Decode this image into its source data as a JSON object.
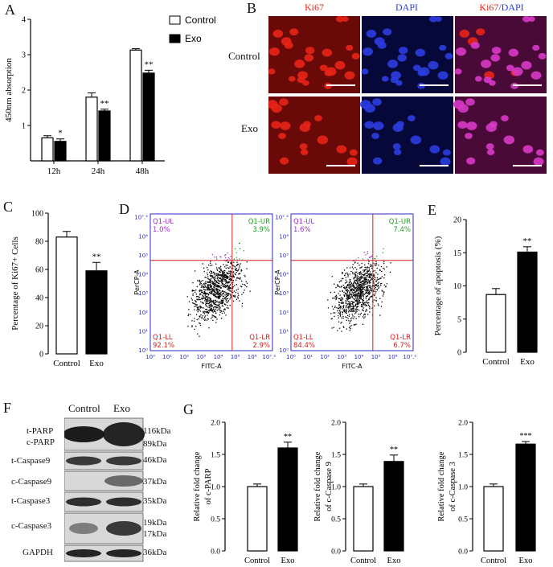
{
  "panels": {
    "A": "A",
    "B": "B",
    "C": "C",
    "D": "D",
    "E": "E",
    "F": "F",
    "G": "G"
  },
  "colors": {
    "control_fill": "#ffffff",
    "exo_fill": "#000000",
    "ki67": "#e82418",
    "dapi": "#2b3de0",
    "merge": "#d838c8",
    "flow_grid": "#2a2acb",
    "flow_gate": "#d02020",
    "flow_ul": "#9b30c8",
    "flow_ur": "#22a022"
  },
  "chart_data": [
    {
      "id": "A",
      "type": "bar",
      "categories": [
        "12h",
        "24h",
        "48h"
      ],
      "series": [
        {
          "name": "Control",
          "values": [
            0.65,
            1.8,
            3.13
          ],
          "errors": [
            0.06,
            0.12,
            0.04
          ]
        },
        {
          "name": "Exo",
          "values": [
            0.55,
            1.41,
            2.48
          ],
          "errors": [
            0.07,
            0.05,
            0.08
          ]
        }
      ],
      "significance": [
        "*",
        "**",
        "**"
      ],
      "ylabel": "450nm absorption",
      "ylim": [
        0,
        4
      ],
      "yticks": [
        "1",
        "2",
        "3",
        "4"
      ],
      "legend": "top-right"
    },
    {
      "id": "C",
      "type": "bar",
      "categories": [
        "Control",
        "Exo"
      ],
      "values": [
        83,
        59
      ],
      "errors": [
        4,
        6
      ],
      "significance": [
        "",
        "**"
      ],
      "ylabel": "Percentage of  Ki67+ Cells",
      "ylim": [
        0,
        100
      ],
      "yticks": [
        "0",
        "20",
        "40",
        "60",
        "80",
        "100"
      ]
    },
    {
      "id": "E",
      "type": "bar",
      "categories": [
        "Control",
        "Exo"
      ],
      "values": [
        8.7,
        15.1
      ],
      "errors": [
        0.9,
        0.8
      ],
      "significance": [
        "",
        "**"
      ],
      "ylabel": "Percentage of apoptosis (%)",
      "ylim": [
        0,
        20
      ],
      "yticks": [
        "0",
        "5",
        "10",
        "15",
        "20"
      ]
    },
    {
      "id": "G1",
      "type": "bar",
      "categories": [
        "Control",
        "Exo"
      ],
      "values": [
        1.0,
        1.6
      ],
      "errors": [
        0.04,
        0.09
      ],
      "significance": [
        "",
        "**"
      ],
      "ylabel": [
        "Relative fold change",
        "of c-PARP"
      ],
      "ylim": [
        0,
        2
      ],
      "yticks": [
        "0.0",
        "0.5",
        "1.0",
        "1.5",
        "2.0"
      ]
    },
    {
      "id": "G2",
      "type": "bar",
      "categories": [
        "Control",
        "Exo"
      ],
      "values": [
        1.0,
        1.39
      ],
      "errors": [
        0.04,
        0.1
      ],
      "significance": [
        "",
        "**"
      ],
      "ylabel": [
        "Relative fold change",
        "of c-Caspase 9"
      ],
      "ylim": [
        0,
        2
      ],
      "yticks": [
        "0.0",
        "0.5",
        "1.0",
        "1.5",
        "2.0"
      ]
    },
    {
      "id": "G3",
      "type": "bar",
      "categories": [
        "Control",
        "Exo"
      ],
      "values": [
        1.0,
        1.66
      ],
      "errors": [
        0.04,
        0.04
      ],
      "significance": [
        "",
        "***"
      ],
      "ylabel": [
        "Relative fold change",
        "of c-Caspase 3"
      ],
      "ylim": [
        0,
        2
      ],
      "yticks": [
        "0.0",
        "0.5",
        "1.0",
        "1.5",
        "2.0"
      ]
    }
  ],
  "microscopy": {
    "columns": [
      "Ki67",
      "DAPI",
      "Ki67/DAPI"
    ],
    "ki67_part": "Ki67",
    "slash": "/",
    "dapi_part": "DAPI",
    "rows": [
      "Control",
      "Exo"
    ]
  },
  "flow": {
    "plots": [
      {
        "ul": "Q1-UL",
        "ul_val": "1.0%",
        "ur": "Q1-UR",
        "ur_val": "3.9%",
        "ll": "Q1-LL",
        "ll_val": "92.1%",
        "lr": "Q1-LR",
        "lr_val": "2.9%"
      },
      {
        "ul": "Q1-UL",
        "ul_val": "1.6%",
        "ur": "Q1-UR",
        "ur_val": "7.4%",
        "ll": "Q1-LL",
        "ll_val": "84.4%",
        "lr": "Q1-LR",
        "lr_val": "6.7%"
      }
    ],
    "xlabel": "FITC-A",
    "ylabel": "PerCP-A",
    "ticks": [
      "10⁰",
      "10¹",
      "10²",
      "10³",
      "10⁴",
      "10⁵",
      "10⁶",
      "10⁷.²"
    ]
  },
  "western": {
    "columns": [
      "Control",
      "Exo"
    ],
    "bands": [
      {
        "left": [
          "t-PARP",
          "c-PARP"
        ],
        "right": [
          "116kDa",
          "89kDa"
        ]
      },
      {
        "left": [
          "t-Caspase9"
        ],
        "right": [
          "46kDa"
        ]
      },
      {
        "left": [
          "c-Caspase9"
        ],
        "right": [
          "37kDa"
        ]
      },
      {
        "left": [
          "t-Caspase3"
        ],
        "right": [
          "35kDa"
        ]
      },
      {
        "left": [
          "c-Caspase3"
        ],
        "right": [
          "19kDa",
          "17kDa"
        ]
      },
      {
        "left": [
          "GAPDH"
        ],
        "right": [
          "36kDa"
        ]
      }
    ]
  }
}
